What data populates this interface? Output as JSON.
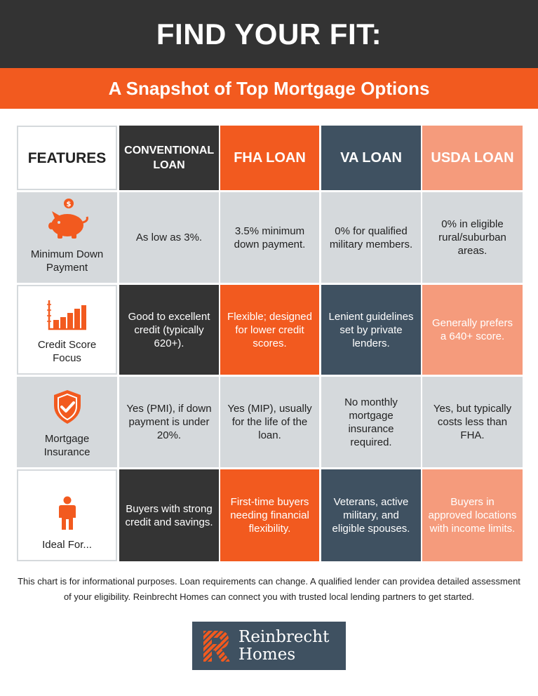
{
  "header": {
    "title": "FIND YOUR FIT:",
    "subtitle": "A Snapshot of Top Mortgage Options"
  },
  "table": {
    "columns": [
      {
        "label": "FEATURES"
      },
      {
        "label": "CONVENTIONAL LOAN"
      },
      {
        "label": "FHA LOAN"
      },
      {
        "label": "VA LOAN"
      },
      {
        "label": "USDA LOAN"
      }
    ],
    "rows": [
      {
        "feature": "Minimum Down Payment",
        "icon": "piggy-bank-icon",
        "cells": [
          "As low as 3%.",
          "3.5% minimum down payment.",
          "0% for qualified military members.",
          "0% in eligible rural/suburban areas."
        ]
      },
      {
        "feature": "Credit Score Focus",
        "icon": "bar-chart-icon",
        "cells": [
          "Good to excellent credit (typically 620+).",
          "Flexible; designed for lower credit scores.",
          "Lenient guidelines set by private lenders.",
          "Generally prefers a 640+ score."
        ]
      },
      {
        "feature": "Mortgage Insurance",
        "icon": "shield-check-icon",
        "cells": [
          "Yes (PMI), if down payment is under 20%.",
          "Yes (MIP), usually for the life of the loan.",
          "No monthly mortgage insurance required.",
          "Yes, but typically costs less than FHA."
        ]
      },
      {
        "feature": "Ideal For...",
        "icon": "person-icon",
        "cells": [
          "Buyers with strong credit and savings.",
          "First-time buyers needing financial flexibility.",
          "Veterans, active military, and eligible spouses.",
          "Buyers in approved locations with income limits."
        ]
      }
    ]
  },
  "footer": {
    "note": "This chart is for informational purposes. Loan requirements can change. A qualified lender can providea detailed assessment of your eligibility. Reinbrecht Homes can connect you with trusted local lending partners to get started."
  },
  "logo": {
    "line1": "Reinbrecht",
    "line2": "Homes"
  },
  "colors": {
    "orange": "#f25a1f",
    "dark": "#343434",
    "slate": "#3f5161",
    "salmon": "#f59b7c",
    "gray": "#d5d9dc"
  }
}
